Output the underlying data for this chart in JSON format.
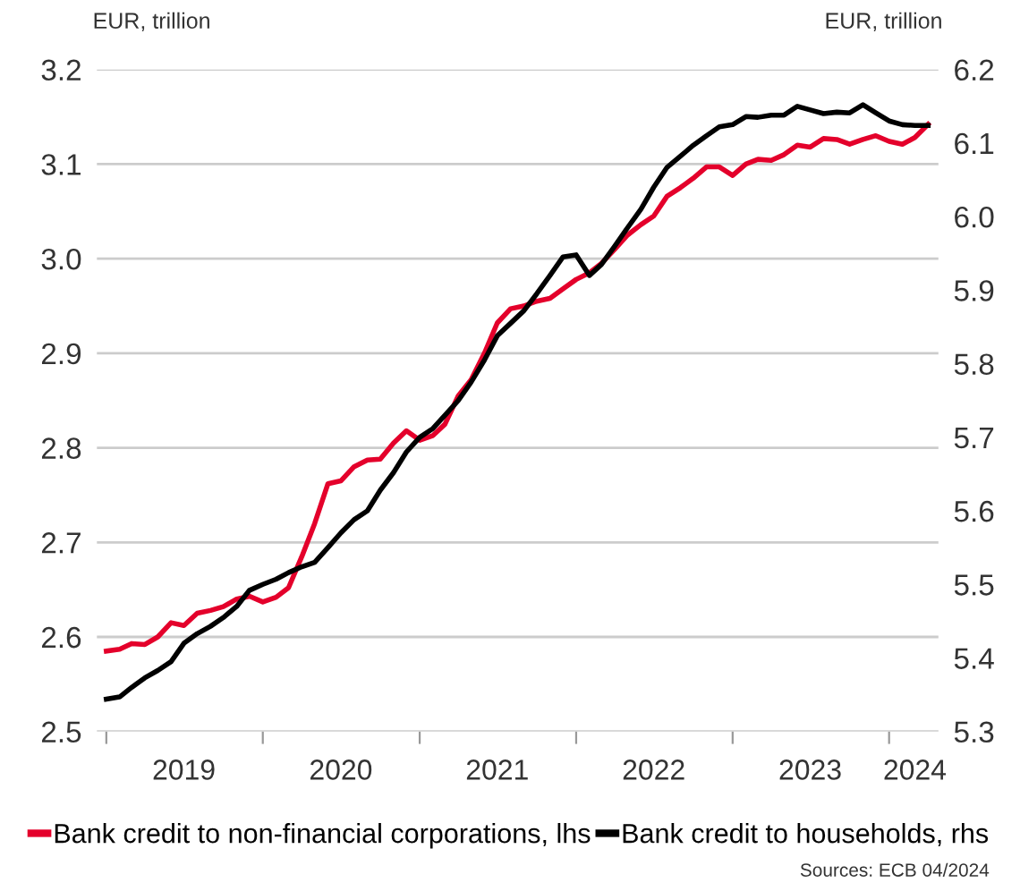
{
  "chart_data": {
    "type": "line",
    "x": [
      "2019-01",
      "2019-02",
      "2019-03",
      "2019-04",
      "2019-05",
      "2019-06",
      "2019-07",
      "2019-08",
      "2019-09",
      "2019-10",
      "2019-11",
      "2019-12",
      "2020-01",
      "2020-02",
      "2020-03",
      "2020-04",
      "2020-05",
      "2020-06",
      "2020-07",
      "2020-08",
      "2020-09",
      "2020-10",
      "2020-11",
      "2020-12",
      "2021-01",
      "2021-02",
      "2021-03",
      "2021-04",
      "2021-05",
      "2021-06",
      "2021-07",
      "2021-08",
      "2021-09",
      "2021-10",
      "2021-11",
      "2021-12",
      "2022-01",
      "2022-02",
      "2022-03",
      "2022-04",
      "2022-05",
      "2022-06",
      "2022-07",
      "2022-08",
      "2022-09",
      "2022-10",
      "2022-11",
      "2022-12",
      "2023-01",
      "2023-02",
      "2023-03",
      "2023-04",
      "2023-05",
      "2023-06",
      "2023-07",
      "2023-08",
      "2023-09",
      "2023-10",
      "2023-11",
      "2023-12",
      "2024-01",
      "2024-02",
      "2024-03",
      "2024-04"
    ],
    "series": [
      {
        "name": "Bank credit to non-financial corporations, lhs",
        "color": "#e4002b",
        "values": [
          2.585,
          2.587,
          2.593,
          2.592,
          2.6,
          2.615,
          2.612,
          2.625,
          2.628,
          2.632,
          2.64,
          2.643,
          2.637,
          2.642,
          2.652,
          2.685,
          2.72,
          2.762,
          2.765,
          2.78,
          2.787,
          2.788,
          2.805,
          2.818,
          2.808,
          2.813,
          2.825,
          2.855,
          2.872,
          2.9,
          2.932,
          2.947,
          2.95,
          2.955,
          2.958,
          2.968,
          2.978,
          2.985,
          2.995,
          3.01,
          3.025,
          3.036,
          3.045,
          3.066,
          3.075,
          3.085,
          3.097,
          3.097,
          3.088,
          3.1,
          3.105,
          3.104,
          3.11,
          3.12,
          3.118,
          3.127,
          3.126,
          3.121,
          3.126,
          3.13,
          3.124,
          3.121,
          3.128,
          3.142
        ]
      },
      {
        "name": "Bank credit to households, rhs",
        "color": "#000000",
        "axis": "y2",
        "values": [
          5.344,
          5.347,
          5.36,
          5.373,
          5.383,
          5.395,
          5.42,
          5.433,
          5.443,
          5.455,
          5.47,
          5.492,
          5.5,
          5.507,
          5.516,
          5.524,
          5.53,
          5.55,
          5.57,
          5.588,
          5.6,
          5.628,
          5.652,
          5.68,
          5.7,
          5.712,
          5.73,
          5.75,
          5.775,
          5.805,
          5.838,
          5.855,
          5.872,
          5.895,
          5.92,
          5.945,
          5.948,
          5.92,
          5.935,
          5.96,
          5.985,
          6.01,
          6.04,
          6.067,
          6.082,
          6.097,
          6.11,
          6.122,
          6.125,
          6.136,
          6.135,
          6.138,
          6.138,
          6.15,
          6.145,
          6.14,
          6.142,
          6.141,
          6.152,
          6.141,
          6.13,
          6.125,
          6.124,
          6.124
        ]
      }
    ],
    "ylabel": "EUR, trillion",
    "y2label": "EUR, trillion",
    "ylim": [
      2.5,
      3.2
    ],
    "yticks": [
      {
        "value": 2.5,
        "label": "2.5"
      },
      {
        "value": 2.6,
        "label": "2.6"
      },
      {
        "value": 2.7,
        "label": "2.7"
      },
      {
        "value": 2.8,
        "label": "2.8"
      },
      {
        "value": 2.9,
        "label": "2.9"
      },
      {
        "value": 3.0,
        "label": "3.0"
      },
      {
        "value": 3.1,
        "label": "3.1"
      },
      {
        "value": 3.2,
        "label": "3.2"
      }
    ],
    "y2lim": [
      5.3,
      6.2
    ],
    "y2ticks": [
      {
        "value": 5.3,
        "label": "5.3"
      },
      {
        "value": 5.4,
        "label": "5.4"
      },
      {
        "value": 5.5,
        "label": "5.5"
      },
      {
        "value": 5.6,
        "label": "5.6"
      },
      {
        "value": 5.7,
        "label": "5.7"
      },
      {
        "value": 5.8,
        "label": "5.8"
      },
      {
        "value": 5.9,
        "label": "5.9"
      },
      {
        "value": 6.0,
        "label": "6.0"
      },
      {
        "value": 6.1,
        "label": "6.1"
      },
      {
        "value": 6.2,
        "label": "6.2"
      }
    ],
    "xlim": [
      "2018-12-10",
      "2024-04-25"
    ],
    "xticks": [
      {
        "value": "2019-01-01",
        "label": null
      },
      {
        "value": "2019-07-01",
        "label": "2019"
      },
      {
        "value": "2020-01-01",
        "label": null
      },
      {
        "value": "2020-07-01",
        "label": "2020"
      },
      {
        "value": "2021-01-01",
        "label": null
      },
      {
        "value": "2021-07-01",
        "label": "2021"
      },
      {
        "value": "2022-01-01",
        "label": null
      },
      {
        "value": "2022-07-01",
        "label": "2022"
      },
      {
        "value": "2023-01-01",
        "label": null
      },
      {
        "value": "2023-07-01",
        "label": "2023"
      },
      {
        "value": "2024-01-01",
        "label": null
      },
      {
        "value": "2024-03-01",
        "label": "2024"
      }
    ],
    "grid": "y",
    "legend": "bottom",
    "marker": "none",
    "line_style": "solid",
    "annotations": [
      "Sources: ECB 04/2024"
    ]
  }
}
